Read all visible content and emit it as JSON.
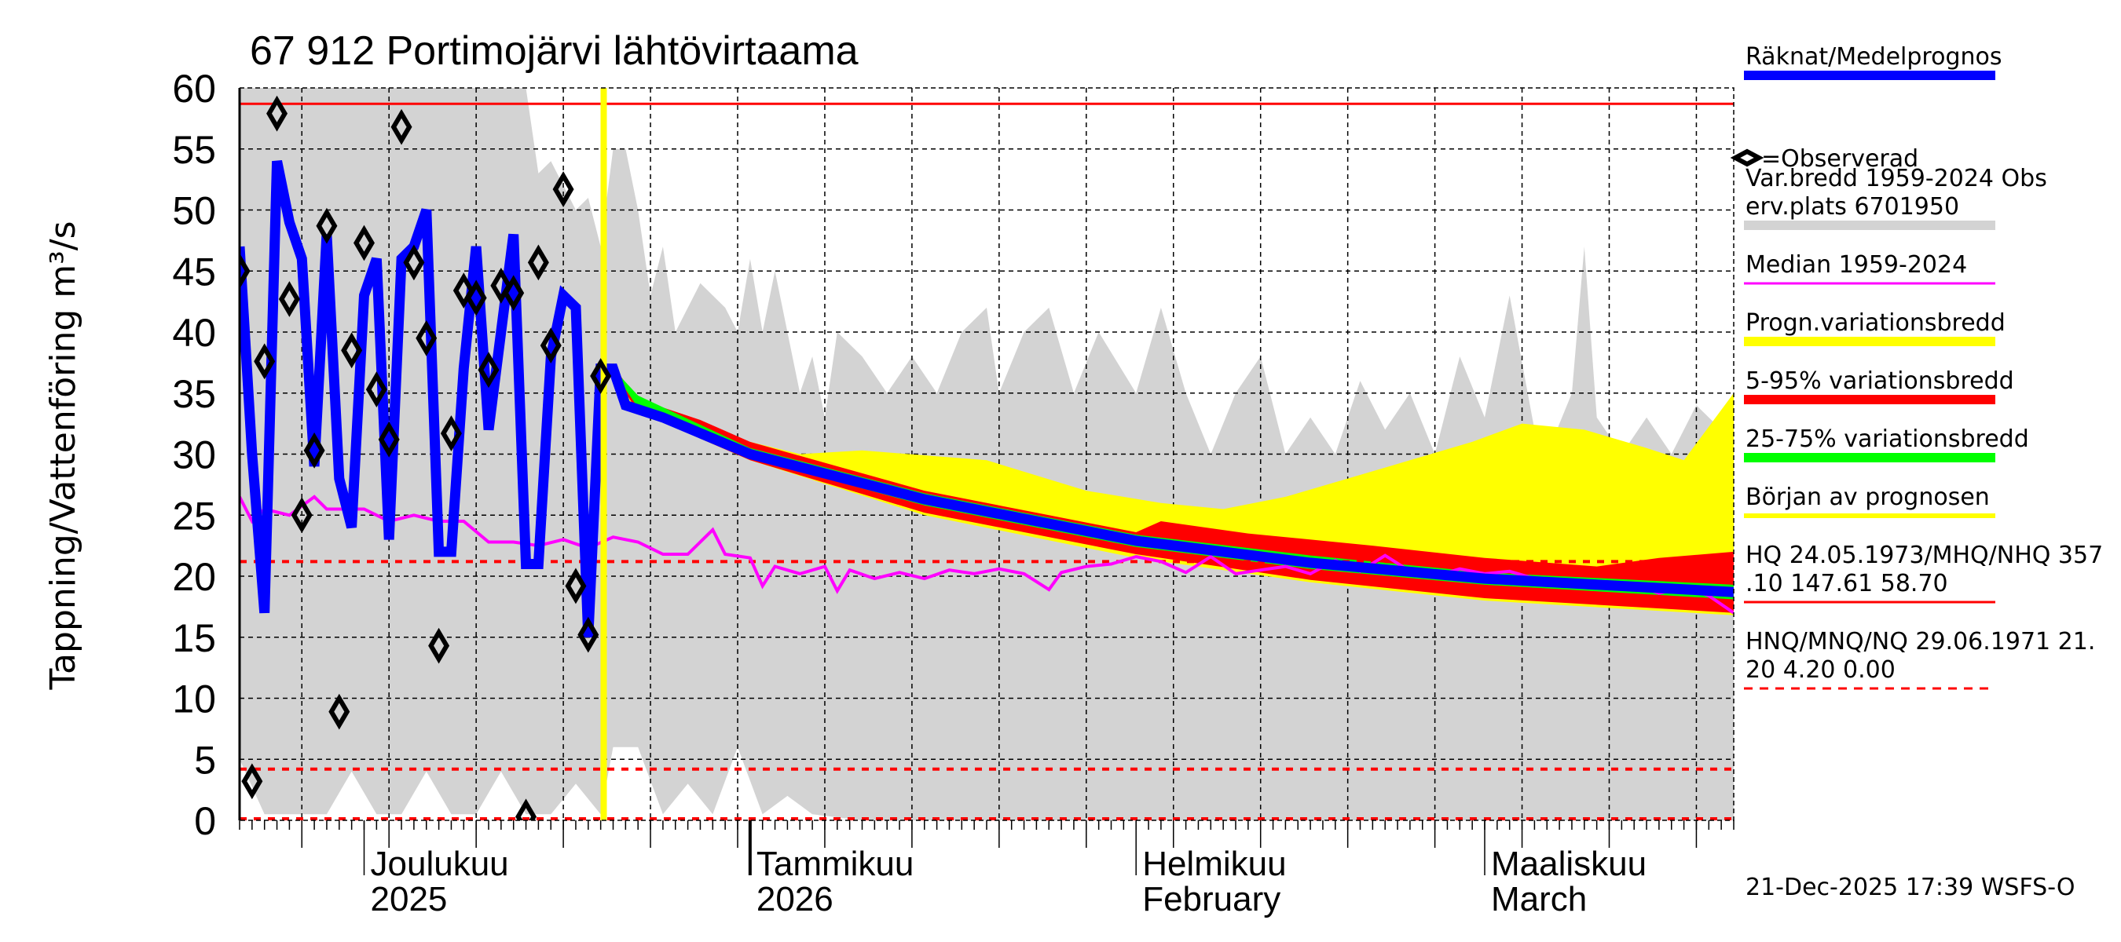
{
  "chart_data": {
    "type": "area",
    "title": "67 912 Portimojärvi lähtövirtaama",
    "ylabel": "Tappning/Vattenföring m³/s",
    "xlabel": "",
    "ylim": [
      0,
      60
    ],
    "xlim": [
      "2025-11-21",
      "2026-03-21"
    ],
    "grid": true,
    "legend_placement": "right",
    "yticks": [
      "0",
      "5",
      "10",
      "15",
      "20",
      "25",
      "30",
      "35",
      "40",
      "45",
      "50",
      "55",
      "60"
    ],
    "xticks": [
      {
        "date": "2025-12-01",
        "line1": "Joulukuu",
        "line2": "2025"
      },
      {
        "date": "2026-01-01",
        "line1": "Tammikuu",
        "line2": "2026"
      },
      {
        "date": "2026-02-01",
        "line1": "Helmikuu",
        "line2": "February"
      },
      {
        "date": "2026-03-01",
        "line1": "Maaliskuu",
        "line2": "March"
      }
    ],
    "forecast_start": "2025-12-21",
    "reference_lines": {
      "HQ": 58.7,
      "HNQ": 21.2,
      "MNQ": 4.2,
      "NQ": 0.0
    },
    "colors": {
      "simulated": "#0000ff",
      "observed": "#000000",
      "historic_range": "#d3d3d3",
      "median": "#ff00ff",
      "forecast_range": "#ffff00",
      "p5_95": "#ff0000",
      "p25_75": "#00ff00",
      "forecast_start": "#ffff00",
      "hq": "#ff0000"
    },
    "historic_range": {
      "upper": [
        [
          "2025-11-21",
          60
        ],
        [
          "2025-12-14",
          60
        ],
        [
          "2025-12-15",
          53
        ],
        [
          "2025-12-16",
          54
        ],
        [
          "2025-12-18",
          50
        ],
        [
          "2025-12-19",
          51
        ],
        [
          "2025-12-20",
          47
        ],
        [
          "2025-12-21",
          55
        ],
        [
          "2025-12-22",
          55
        ],
        [
          "2025-12-23",
          50
        ],
        [
          "2025-12-24",
          43
        ],
        [
          "2025-12-25",
          47
        ],
        [
          "2025-12-26",
          40
        ],
        [
          "2025-12-28",
          44
        ],
        [
          "2025-12-30",
          42
        ],
        [
          "2025-12-31",
          40
        ],
        [
          "2026-01-01",
          46
        ],
        [
          "2026-01-02",
          40
        ],
        [
          "2026-01-03",
          45
        ],
        [
          "2026-01-05",
          35
        ],
        [
          "2026-01-06",
          38
        ],
        [
          "2026-01-07",
          33
        ],
        [
          "2026-01-08",
          40
        ],
        [
          "2026-01-10",
          38
        ],
        [
          "2026-01-12",
          35
        ],
        [
          "2026-01-14",
          38
        ],
        [
          "2026-01-16",
          35
        ],
        [
          "2026-01-18",
          40
        ],
        [
          "2026-01-20",
          42
        ],
        [
          "2026-01-21",
          35
        ],
        [
          "2026-01-23",
          40
        ],
        [
          "2026-01-25",
          42
        ],
        [
          "2026-01-27",
          35
        ],
        [
          "2026-01-29",
          40
        ],
        [
          "2026-02-01",
          35
        ],
        [
          "2026-02-03",
          42
        ],
        [
          "2026-02-05",
          35
        ],
        [
          "2026-02-07",
          30
        ],
        [
          "2026-02-09",
          35
        ],
        [
          "2026-02-11",
          38
        ],
        [
          "2026-02-13",
          30
        ],
        [
          "2026-02-15",
          33
        ],
        [
          "2026-02-17",
          30
        ],
        [
          "2026-02-19",
          36
        ],
        [
          "2026-02-21",
          32
        ],
        [
          "2026-02-23",
          35
        ],
        [
          "2026-02-25",
          30
        ],
        [
          "2026-02-27",
          38
        ],
        [
          "2026-03-01",
          33
        ],
        [
          "2026-03-03",
          43
        ],
        [
          "2026-03-05",
          32
        ],
        [
          "2026-03-06",
          30
        ],
        [
          "2026-03-08",
          35
        ],
        [
          "2026-03-09",
          47
        ],
        [
          "2026-03-10",
          33
        ],
        [
          "2026-03-12",
          30
        ],
        [
          "2026-03-14",
          33
        ],
        [
          "2026-03-16",
          30
        ],
        [
          "2026-03-18",
          34
        ],
        [
          "2026-03-20",
          32
        ],
        [
          "2026-03-21",
          31
        ]
      ],
      "lower": [
        [
          "2025-11-21",
          5
        ],
        [
          "2025-11-23",
          0.5
        ],
        [
          "2025-11-26",
          0.5
        ],
        [
          "2025-11-28",
          0.5
        ],
        [
          "2025-11-30",
          4
        ],
        [
          "2025-12-02",
          0.5
        ],
        [
          "2025-12-04",
          0.5
        ],
        [
          "2025-12-06",
          4
        ],
        [
          "2025-12-08",
          0.5
        ],
        [
          "2025-12-10",
          0.5
        ],
        [
          "2025-12-12",
          4
        ],
        [
          "2025-12-14",
          0.5
        ],
        [
          "2025-12-16",
          0.5
        ],
        [
          "2025-12-18",
          3
        ],
        [
          "2025-12-20",
          0.5
        ],
        [
          "2025-12-21",
          6
        ],
        [
          "2025-12-23",
          6
        ],
        [
          "2025-12-25",
          0.5
        ],
        [
          "2025-12-27",
          3
        ],
        [
          "2025-12-29",
          0.5
        ],
        [
          "2025-12-31",
          6
        ],
        [
          "2026-01-02",
          0.5
        ],
        [
          "2026-01-04",
          2
        ],
        [
          "2026-01-06",
          0.5
        ],
        [
          "2026-01-10",
          0
        ],
        [
          "2026-03-21",
          0
        ]
      ]
    },
    "median": [
      [
        "2025-11-21",
        26.5
      ],
      [
        "2025-11-22",
        24.5
      ],
      [
        "2025-11-23",
        25.5
      ],
      [
        "2025-11-25",
        25
      ],
      [
        "2025-11-27",
        26.5
      ],
      [
        "2025-11-28",
        25.5
      ],
      [
        "2025-12-01",
        25.5
      ],
      [
        "2025-12-03",
        24.5
      ],
      [
        "2025-12-05",
        25
      ],
      [
        "2025-12-07",
        24.5
      ],
      [
        "2025-12-09",
        24.5
      ],
      [
        "2025-12-11",
        22.8
      ],
      [
        "2025-12-13",
        22.8
      ],
      [
        "2025-12-15",
        22.5
      ],
      [
        "2025-12-17",
        23
      ],
      [
        "2025-12-19",
        22.3
      ],
      [
        "2025-12-21",
        23.2
      ],
      [
        "2025-12-23",
        22.8
      ],
      [
        "2025-12-25",
        21.8
      ],
      [
        "2025-12-27",
        21.8
      ],
      [
        "2025-12-29",
        23.8
      ],
      [
        "2025-12-30",
        21.8
      ],
      [
        "2026-01-01",
        21.5
      ],
      [
        "2026-01-02",
        19.2
      ],
      [
        "2026-01-03",
        20.8
      ],
      [
        "2026-01-05",
        20.2
      ],
      [
        "2026-01-07",
        20.8
      ],
      [
        "2026-01-08",
        18.8
      ],
      [
        "2026-01-09",
        20.5
      ],
      [
        "2026-01-11",
        19.8
      ],
      [
        "2026-01-13",
        20.3
      ],
      [
        "2026-01-15",
        19.8
      ],
      [
        "2026-01-17",
        20.5
      ],
      [
        "2026-01-19",
        20.2
      ],
      [
        "2026-01-21",
        20.6
      ],
      [
        "2026-01-23",
        20.2
      ],
      [
        "2026-01-25",
        18.9
      ],
      [
        "2026-01-26",
        20.3
      ],
      [
        "2026-01-28",
        20.8
      ],
      [
        "2026-01-30",
        21
      ],
      [
        "2026-02-01",
        21.6
      ],
      [
        "2026-02-03",
        21.2
      ],
      [
        "2026-02-05",
        20.3
      ],
      [
        "2026-02-07",
        21.6
      ],
      [
        "2026-02-09",
        20.2
      ],
      [
        "2026-02-11",
        20.5
      ],
      [
        "2026-02-13",
        20.8
      ],
      [
        "2026-02-15",
        20.2
      ],
      [
        "2026-02-17",
        21.3
      ],
      [
        "2026-02-19",
        20.4
      ],
      [
        "2026-02-21",
        21.7
      ],
      [
        "2026-02-23",
        20.4
      ],
      [
        "2026-02-25",
        20
      ],
      [
        "2026-02-27",
        20.6
      ],
      [
        "2026-03-01",
        20.2
      ],
      [
        "2026-03-03",
        20.4
      ],
      [
        "2026-03-05",
        19.8
      ],
      [
        "2026-03-07",
        19.2
      ],
      [
        "2026-03-09",
        19.6
      ],
      [
        "2026-03-11",
        19
      ],
      [
        "2026-03-13",
        19.3
      ],
      [
        "2026-03-15",
        18.6
      ],
      [
        "2026-03-17",
        19.1
      ],
      [
        "2026-03-19",
        18.4
      ],
      [
        "2026-03-21",
        17
      ]
    ],
    "forecast_range": {
      "upper": [
        [
          "2025-12-21",
          37.5
        ],
        [
          "2025-12-23",
          34
        ],
        [
          "2025-12-25",
          33
        ],
        [
          "2026-01-01",
          31
        ],
        [
          "2026-01-05",
          30
        ],
        [
          "2026-01-10",
          30.3
        ],
        [
          "2026-01-20",
          29.5
        ],
        [
          "2026-01-28",
          27
        ],
        [
          "2026-02-03",
          26
        ],
        [
          "2026-02-08",
          25.5
        ],
        [
          "2026-02-13",
          26.5
        ],
        [
          "2026-02-18",
          28
        ],
        [
          "2026-02-23",
          29.5
        ],
        [
          "2026-02-28",
          31
        ],
        [
          "2026-03-04",
          32.5
        ],
        [
          "2026-03-09",
          32
        ],
        [
          "2026-03-14",
          30.5
        ],
        [
          "2026-03-17",
          29.5
        ],
        [
          "2026-03-21",
          35
        ]
      ],
      "lower": [
        [
          "2025-12-21",
          36
        ],
        [
          "2025-12-23",
          33.5
        ],
        [
          "2026-01-01",
          29.5
        ],
        [
          "2026-01-15",
          25
        ],
        [
          "2026-02-01",
          21.5
        ],
        [
          "2026-02-15",
          19.5
        ],
        [
          "2026-03-01",
          18
        ],
        [
          "2026-03-21",
          16.8
        ]
      ]
    },
    "p5_95": {
      "upper": [
        [
          "2025-12-21",
          37.2
        ],
        [
          "2025-12-23",
          34.5
        ],
        [
          "2025-12-28",
          32.8
        ],
        [
          "2026-01-01",
          31
        ],
        [
          "2026-01-08",
          29
        ],
        [
          "2026-01-15",
          27
        ],
        [
          "2026-01-25",
          25
        ],
        [
          "2026-02-01",
          23.6
        ],
        [
          "2026-02-03",
          24.5
        ],
        [
          "2026-02-10",
          23.5
        ],
        [
          "2026-02-20",
          22.5
        ],
        [
          "2026-03-01",
          21.5
        ],
        [
          "2026-03-10",
          20.8
        ],
        [
          "2026-03-15",
          21.5
        ],
        [
          "2026-03-21",
          22
        ]
      ],
      "lower": [
        [
          "2025-12-21",
          36.5
        ],
        [
          "2025-12-23",
          33.5
        ],
        [
          "2026-01-01",
          29.5
        ],
        [
          "2026-01-15",
          25.2
        ],
        [
          "2026-02-01",
          21.8
        ],
        [
          "2026-02-15",
          19.7
        ],
        [
          "2026-03-01",
          18.2
        ],
        [
          "2026-03-21",
          17
        ]
      ]
    },
    "p25_75": {
      "upper": [
        [
          "2025-12-21",
          37
        ],
        [
          "2025-12-23",
          34.8
        ],
        [
          "2026-01-01",
          30.5
        ],
        [
          "2026-01-15",
          26.8
        ],
        [
          "2026-02-01",
          23.4
        ],
        [
          "2026-02-15",
          21.7
        ],
        [
          "2026-03-01",
          20.3
        ],
        [
          "2026-03-21",
          19.3
        ]
      ],
      "lower": [
        [
          "2025-12-21",
          36.8
        ],
        [
          "2025-12-23",
          33.8
        ],
        [
          "2026-01-01",
          29.7
        ],
        [
          "2026-01-15",
          25.8
        ],
        [
          "2026-02-01",
          22.4
        ],
        [
          "2026-02-15",
          20.6
        ],
        [
          "2026-03-01",
          19.3
        ],
        [
          "2026-03-21",
          18.1
        ]
      ]
    },
    "simulated": [
      [
        "2025-11-21",
        47
      ],
      [
        "2025-11-22",
        30
      ],
      [
        "2025-11-23",
        17
      ],
      [
        "2025-11-24",
        54
      ],
      [
        "2025-11-25",
        49
      ],
      [
        "2025-11-26",
        46
      ],
      [
        "2025-11-27",
        29
      ],
      [
        "2025-11-28",
        48
      ],
      [
        "2025-11-29",
        28
      ],
      [
        "2025-11-30",
        24
      ],
      [
        "2025-12-01",
        43
      ],
      [
        "2025-12-02",
        46
      ],
      [
        "2025-12-03",
        23
      ],
      [
        "2025-12-04",
        46
      ],
      [
        "2025-12-05",
        47
      ],
      [
        "2025-12-06",
        50
      ],
      [
        "2025-12-07",
        22
      ],
      [
        "2025-12-08",
        22
      ],
      [
        "2025-12-09",
        37
      ],
      [
        "2025-12-10",
        47
      ],
      [
        "2025-12-11",
        32
      ],
      [
        "2025-12-12",
        40
      ],
      [
        "2025-12-13",
        48
      ],
      [
        "2025-12-14",
        21
      ],
      [
        "2025-12-15",
        21
      ],
      [
        "2025-12-16",
        38
      ],
      [
        "2025-12-17",
        43
      ],
      [
        "2025-12-18",
        42
      ],
      [
        "2025-12-19",
        15
      ],
      [
        "2025-12-20",
        37
      ],
      [
        "2025-12-21",
        37
      ],
      [
        "2025-12-22",
        34
      ],
      [
        "2025-12-25",
        33
      ],
      [
        "2026-01-01",
        30
      ],
      [
        "2026-01-15",
        26.3
      ],
      [
        "2026-02-01",
        22.9
      ],
      [
        "2026-02-15",
        21.1
      ],
      [
        "2026-03-01",
        19.8
      ],
      [
        "2026-03-21",
        18.7
      ]
    ],
    "observed": [
      [
        "2025-11-21",
        45
      ],
      [
        "2025-11-22",
        3.2
      ],
      [
        "2025-11-23",
        37.6
      ],
      [
        "2025-11-24",
        57.9
      ],
      [
        "2025-11-25",
        42.7
      ],
      [
        "2025-11-26",
        25
      ],
      [
        "2025-11-27",
        30.3
      ],
      [
        "2025-11-28",
        48.7
      ],
      [
        "2025-11-29",
        8.9
      ],
      [
        "2025-11-30",
        38.5
      ],
      [
        "2025-12-01",
        47.3
      ],
      [
        "2025-12-02",
        35.3
      ],
      [
        "2025-12-03",
        31.2
      ],
      [
        "2025-12-04",
        56.8
      ],
      [
        "2025-12-05",
        45.7
      ],
      [
        "2025-12-06",
        39.5
      ],
      [
        "2025-12-07",
        14.3
      ],
      [
        "2025-12-08",
        31.7
      ],
      [
        "2025-12-09",
        43.4
      ],
      [
        "2025-12-10",
        42.8
      ],
      [
        "2025-12-11",
        36.9
      ],
      [
        "2025-12-12",
        43.8
      ],
      [
        "2025-12-13",
        43.2
      ],
      [
        "2025-12-14",
        0.3
      ],
      [
        "2025-12-15",
        45.7
      ],
      [
        "2025-12-16",
        38.9
      ],
      [
        "2025-12-17",
        51.7
      ],
      [
        "2025-12-18",
        19.2
      ],
      [
        "2025-12-19",
        15.2
      ],
      [
        "2025-12-20",
        36.4
      ]
    ],
    "legend": [
      {
        "label": "Räknat/Medelprognos",
        "color": "#0000ff",
        "style": "thick"
      },
      {
        "label": "=Observerad",
        "color": "#000000",
        "style": "diamond"
      },
      {
        "label": "Var.bredd 1959-2024   Obs",
        "label2": "erv.plats 6701950",
        "color": "#d3d3d3",
        "style": "thick"
      },
      {
        "label": "Median 1959-2024",
        "color": "#ff00ff",
        "style": "thin"
      },
      {
        "label": "Progn.variationsbredd",
        "color": "#ffff00",
        "style": "thick"
      },
      {
        "label": "5-95% variationsbredd",
        "color": "#ff0000",
        "style": "thick"
      },
      {
        "label": "25-75% variationsbredd",
        "color": "#00ff00",
        "style": "thick"
      },
      {
        "label": "Början av prognosen",
        "color": "#ffff00",
        "style": "medium"
      },
      {
        "label": "HQ 24.05.1973/MHQ/NHQ 357",
        "label2": ".10 147.61 58.70",
        "color": "#ff0000",
        "style": "thin"
      },
      {
        "label": "HNQ/MNQ/NQ 29.06.1971 21.",
        "label2": "20 4.20 0.00",
        "color": "#ff0000",
        "style": "dashed"
      }
    ],
    "footer": "21-Dec-2025 17:39 WSFS-O"
  }
}
